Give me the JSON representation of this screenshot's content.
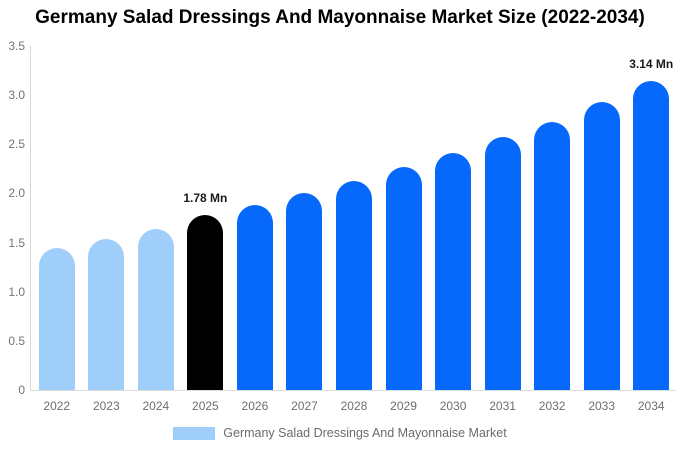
{
  "title": "Germany Salad Dressings And Mayonnaise Market Size (2022-2034)",
  "colors": {
    "background": "#ffffff",
    "bar_historical": "#A0CEFB",
    "bar_base_year": "#000000",
    "bar_forecast": "#0669FC",
    "axis_line": "#d9d9d9",
    "baseline": "#dcdcdc",
    "ytick_text": "#757575",
    "xlabel_text": "#6e6e6e",
    "annotation_text": "#1a1a1a",
    "legend_text": "#6b6b6b"
  },
  "chart_data": {
    "type": "bar",
    "title": "Germany Salad Dressings And Mayonnaise Market Size (2022-2034)",
    "unit": "Mn",
    "categories": [
      "2022",
      "2023",
      "2024",
      "2025",
      "2026",
      "2027",
      "2028",
      "2029",
      "2030",
      "2031",
      "2032",
      "2033",
      "2034"
    ],
    "values": [
      1.44,
      1.54,
      1.64,
      1.78,
      1.88,
      2.0,
      2.13,
      2.27,
      2.41,
      2.57,
      2.73,
      2.93,
      3.14
    ],
    "bar_colors": [
      "#A0CEFB",
      "#A0CEFB",
      "#A0CEFB",
      "#000000",
      "#0669FC",
      "#0669FC",
      "#0669FC",
      "#0669FC",
      "#0669FC",
      "#0669FC",
      "#0669FC",
      "#0669FC",
      "#0669FC"
    ],
    "annotations": [
      {
        "category": "2025",
        "label": "1.78 Mn"
      },
      {
        "category": "2034",
        "label": "3.14 Mn"
      }
    ],
    "yticks": [
      {
        "label": "3.5",
        "value": 3.5
      },
      {
        "label": "3.0",
        "value": 3.0
      },
      {
        "label": "2.5",
        "value": 2.5
      },
      {
        "label": "2.0",
        "value": 2.0
      },
      {
        "label": "1.5",
        "value": 1.5
      },
      {
        "label": "1.0",
        "value": 1.0
      },
      {
        "label": "0.5",
        "value": 0.5
      },
      {
        "label": "0",
        "value": 0
      }
    ],
    "ylim": [
      0,
      3.5
    ],
    "xlabel": "",
    "ylabel": "",
    "grid": false,
    "legend": {
      "position": "bottom",
      "items": [
        {
          "label": "Germany Salad Dressings And Mayonnaise Market",
          "color": "#A0CEFB"
        }
      ]
    }
  }
}
